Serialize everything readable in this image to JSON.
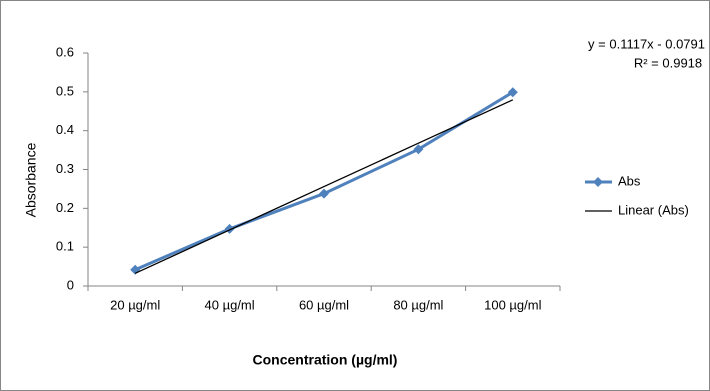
{
  "chart_data": {
    "type": "line",
    "x_label": "Concentration (µg/ml)",
    "y_label": "Absorbance",
    "categories": [
      "20 µg/ml",
      "40 µg/ml",
      "60 µg/ml",
      "80 µg/ml",
      "100 µg/ml"
    ],
    "series": [
      {
        "name": "Abs",
        "color": "#4f81bd",
        "values": [
          0.042,
          0.147,
          0.238,
          0.352,
          0.499
        ]
      },
      {
        "name": "Linear (Abs)",
        "color": "#000000",
        "values": [
          0.0326,
          0.1443,
          0.256,
          0.3677,
          0.4794
        ]
      }
    ],
    "annotations": [
      "y = 0.1117x - 0.0791",
      "R² = 0.9918"
    ],
    "ylim": [
      0,
      0.6
    ],
    "yticks": [
      0,
      0.1,
      0.2,
      0.3,
      0.4,
      0.5,
      0.6
    ],
    "grid": false,
    "legend": "right"
  }
}
